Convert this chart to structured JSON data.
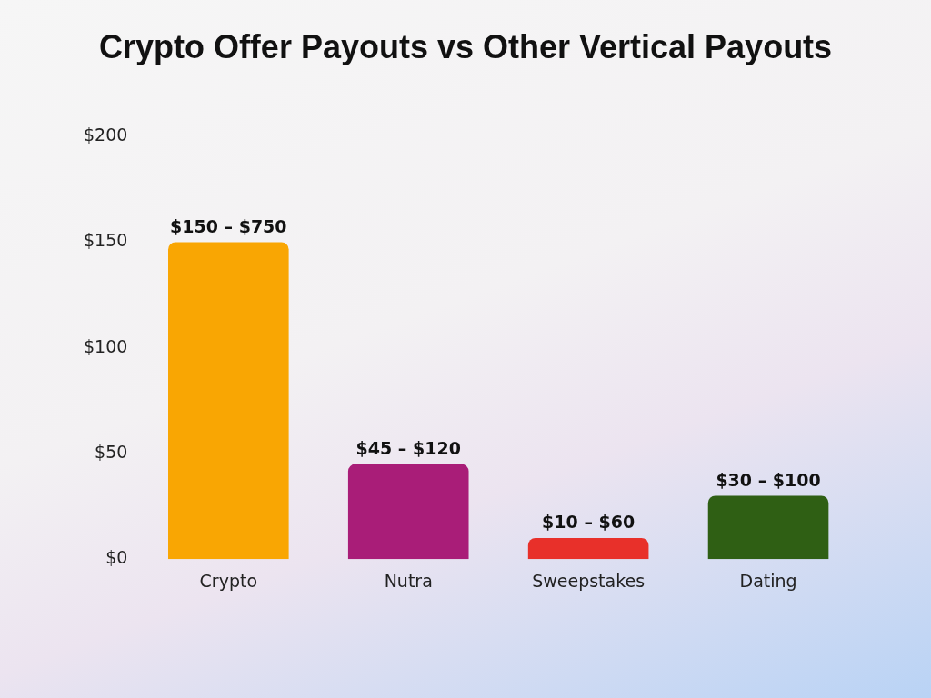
{
  "chart_data": {
    "type": "bar",
    "title": "Crypto Offer Payouts vs Other Vertical Payouts",
    "categories": [
      "Crypto",
      "Nutra",
      "Sweepstakes",
      "Dating"
    ],
    "values": [
      150,
      45,
      10,
      30
    ],
    "colors": [
      "#f9a603",
      "#a91d78",
      "#e8302a",
      "#2f5f14"
    ],
    "value_labels": [
      "$150 – $750",
      "$45 – $120",
      "$10 – $60",
      "$30 – $100"
    ],
    "ylim": [
      0,
      200
    ],
    "yticks": [
      {
        "value": 0,
        "label": "$0"
      },
      {
        "value": 50,
        "label": "$50"
      },
      {
        "value": 100,
        "label": "$100"
      },
      {
        "value": 150,
        "label": "$150"
      },
      {
        "value": 200,
        "label": "$200"
      }
    ]
  }
}
